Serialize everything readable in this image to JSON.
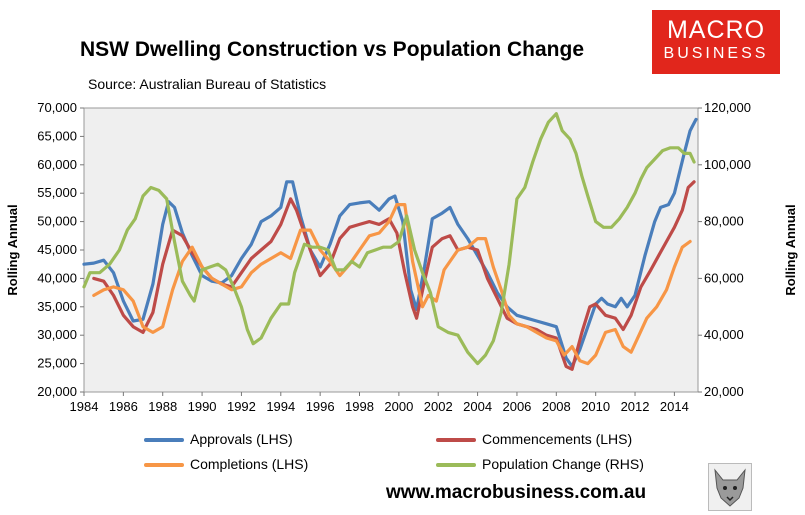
{
  "chart_data": {
    "type": "line",
    "title": "NSW Dwelling Construction vs Population Change",
    "subtitle": "Source: Australian Bureau of Statistics",
    "x_ticks": [
      "1984",
      "1986",
      "1988",
      "1990",
      "1992",
      "1994",
      "1996",
      "1998",
      "2000",
      "2002",
      "2004",
      "2006",
      "2008",
      "2010",
      "2012",
      "2014"
    ],
    "xlim": [
      1984,
      2015.2
    ],
    "left_axis": {
      "label": "Rolling Annual",
      "ylim": [
        20000,
        70000
      ],
      "ticks": [
        "20,000",
        "25,000",
        "30,000",
        "35,000",
        "40,000",
        "45,000",
        "50,000",
        "55,000",
        "60,000",
        "65,000",
        "70,000"
      ]
    },
    "right_axis": {
      "label": "Rolling Annual",
      "ylim": [
        20000,
        120000
      ],
      "ticks": [
        "20,000",
        "40,000",
        "60,000",
        "80,000",
        "100,000",
        "120,000"
      ]
    },
    "series": [
      {
        "name": "Approvals (LHS)",
        "axis": "left",
        "color": "#4a7ebb",
        "points": [
          [
            1984,
            42500
          ],
          [
            1984.5,
            42700
          ],
          [
            1985,
            43200
          ],
          [
            1985.5,
            41000
          ],
          [
            1986,
            36000
          ],
          [
            1986.5,
            32500
          ],
          [
            1987,
            32800
          ],
          [
            1987.5,
            39000
          ],
          [
            1988,
            49500
          ],
          [
            1988.3,
            53500
          ],
          [
            1988.6,
            52500
          ],
          [
            1989,
            48000
          ],
          [
            1989.5,
            44000
          ],
          [
            1990,
            40500
          ],
          [
            1990.5,
            39500
          ],
          [
            1991,
            39200
          ],
          [
            1991.5,
            40500
          ],
          [
            1992,
            43500
          ],
          [
            1992.5,
            46000
          ],
          [
            1993,
            50000
          ],
          [
            1993.5,
            51000
          ],
          [
            1994,
            52500
          ],
          [
            1994.3,
            57000
          ],
          [
            1994.6,
            57000
          ],
          [
            1995,
            51000
          ],
          [
            1995.5,
            45000
          ],
          [
            1996,
            42000
          ],
          [
            1996.5,
            46000
          ],
          [
            1997,
            51000
          ],
          [
            1997.5,
            53000
          ],
          [
            1998,
            53300
          ],
          [
            1998.5,
            53500
          ],
          [
            1999,
            52000
          ],
          [
            1999.5,
            54000
          ],
          [
            1999.8,
            54500
          ],
          [
            2000.2,
            50000
          ],
          [
            2000.6,
            38000
          ],
          [
            2000.9,
            34500
          ],
          [
            2001.3,
            42000
          ],
          [
            2001.7,
            50500
          ],
          [
            2002.2,
            51500
          ],
          [
            2002.6,
            52500
          ],
          [
            2003,
            49500
          ],
          [
            2003.5,
            47000
          ],
          [
            2004,
            44000
          ],
          [
            2004.5,
            41000
          ],
          [
            2005,
            37500
          ],
          [
            2005.5,
            35000
          ],
          [
            2006,
            33500
          ],
          [
            2006.5,
            33000
          ],
          [
            2007,
            32500
          ],
          [
            2007.5,
            32000
          ],
          [
            2008,
            31500
          ],
          [
            2008.5,
            26000
          ],
          [
            2008.8,
            24500
          ],
          [
            2009.2,
            27500
          ],
          [
            2009.6,
            31500
          ],
          [
            2010,
            35500
          ],
          [
            2010.3,
            36500
          ],
          [
            2010.6,
            35500
          ],
          [
            2011,
            35000
          ],
          [
            2011.3,
            36500
          ],
          [
            2011.6,
            35000
          ],
          [
            2012,
            37000
          ],
          [
            2012.5,
            44000
          ],
          [
            2013,
            50000
          ],
          [
            2013.3,
            52500
          ],
          [
            2013.7,
            53000
          ],
          [
            2014,
            55000
          ],
          [
            2014.5,
            62000
          ],
          [
            2014.8,
            66000
          ],
          [
            2015.1,
            68000
          ]
        ]
      },
      {
        "name": "Commencements (LHS)",
        "axis": "left",
        "color": "#be4b48",
        "points": [
          [
            1984.5,
            40000
          ],
          [
            1985,
            39500
          ],
          [
            1985.5,
            37000
          ],
          [
            1986,
            33500
          ],
          [
            1986.5,
            31500
          ],
          [
            1987,
            30500
          ],
          [
            1987.5,
            34000
          ],
          [
            1988,
            42500
          ],
          [
            1988.5,
            48500
          ],
          [
            1989,
            47500
          ],
          [
            1989.5,
            44500
          ],
          [
            1990,
            42000
          ],
          [
            1990.5,
            40000
          ],
          [
            1991,
            39000
          ],
          [
            1991.5,
            38500
          ],
          [
            1992,
            41000
          ],
          [
            1992.5,
            43500
          ],
          [
            1993,
            45000
          ],
          [
            1993.5,
            46500
          ],
          [
            1994,
            49500
          ],
          [
            1994.5,
            54000
          ],
          [
            1994.8,
            52000
          ],
          [
            1995.2,
            48000
          ],
          [
            1995.6,
            44000
          ],
          [
            1996,
            40500
          ],
          [
            1996.5,
            42500
          ],
          [
            1997,
            47000
          ],
          [
            1997.5,
            49000
          ],
          [
            1998,
            49500
          ],
          [
            1998.5,
            50000
          ],
          [
            1999,
            49500
          ],
          [
            1999.5,
            50500
          ],
          [
            1999.9,
            48000
          ],
          [
            2000.3,
            41000
          ],
          [
            2000.7,
            35000
          ],
          [
            2000.9,
            33000
          ],
          [
            2001.3,
            39500
          ],
          [
            2001.7,
            45500
          ],
          [
            2002.2,
            47000
          ],
          [
            2002.6,
            47500
          ],
          [
            2003,
            45000
          ],
          [
            2003.5,
            45500
          ],
          [
            2004,
            45000
          ],
          [
            2004.5,
            40000
          ],
          [
            2005,
            36500
          ],
          [
            2005.5,
            33000
          ],
          [
            2006,
            32000
          ],
          [
            2006.5,
            31500
          ],
          [
            2007,
            31000
          ],
          [
            2007.5,
            30000
          ],
          [
            2008,
            29500
          ],
          [
            2008.5,
            24500
          ],
          [
            2008.8,
            24000
          ],
          [
            2009.3,
            30500
          ],
          [
            2009.7,
            35000
          ],
          [
            2010,
            35500
          ],
          [
            2010.5,
            33500
          ],
          [
            2011,
            33000
          ],
          [
            2011.4,
            31000
          ],
          [
            2011.8,
            33500
          ],
          [
            2012.3,
            38500
          ],
          [
            2012.8,
            41500
          ],
          [
            2013.2,
            44000
          ],
          [
            2013.6,
            46500
          ],
          [
            2014,
            49000
          ],
          [
            2014.4,
            52000
          ],
          [
            2014.7,
            56000
          ],
          [
            2015,
            57000
          ]
        ]
      },
      {
        "name": "Completions (LHS)",
        "axis": "left",
        "color": "#f79646",
        "points": [
          [
            1984.5,
            37000
          ],
          [
            1985,
            38000
          ],
          [
            1985.5,
            38500
          ],
          [
            1986,
            38000
          ],
          [
            1986.5,
            36000
          ],
          [
            1987,
            31500
          ],
          [
            1987.5,
            30500
          ],
          [
            1988,
            31500
          ],
          [
            1988.5,
            38000
          ],
          [
            1989,
            43000
          ],
          [
            1989.5,
            45500
          ],
          [
            1990,
            42000
          ],
          [
            1990.5,
            40000
          ],
          [
            1991,
            39000
          ],
          [
            1991.5,
            38000
          ],
          [
            1992,
            38500
          ],
          [
            1992.5,
            41000
          ],
          [
            1993,
            42500
          ],
          [
            1993.5,
            43500
          ],
          [
            1994,
            44500
          ],
          [
            1994.5,
            43500
          ],
          [
            1995,
            48500
          ],
          [
            1995.5,
            48500
          ],
          [
            1996,
            45000
          ],
          [
            1996.5,
            43000
          ],
          [
            1997,
            40500
          ],
          [
            1997.5,
            42500
          ],
          [
            1998,
            45000
          ],
          [
            1998.5,
            47500
          ],
          [
            1999,
            48000
          ],
          [
            1999.5,
            50000
          ],
          [
            1999.9,
            53000
          ],
          [
            2000.3,
            53000
          ],
          [
            2000.7,
            43000
          ],
          [
            2001.2,
            35000
          ],
          [
            2001.5,
            37000
          ],
          [
            2001.9,
            36000
          ],
          [
            2002.3,
            41500
          ],
          [
            2002.7,
            43500
          ],
          [
            2003,
            45000
          ],
          [
            2003.5,
            45500
          ],
          [
            2004,
            47000
          ],
          [
            2004.4,
            47000
          ],
          [
            2004.8,
            42000
          ],
          [
            2005.2,
            38000
          ],
          [
            2005.6,
            33500
          ],
          [
            2006,
            32000
          ],
          [
            2006.5,
            31500
          ],
          [
            2007,
            30500
          ],
          [
            2007.5,
            29500
          ],
          [
            2008,
            29000
          ],
          [
            2008.4,
            26500
          ],
          [
            2008.8,
            28000
          ],
          [
            2009.2,
            25500
          ],
          [
            2009.6,
            25000
          ],
          [
            2010,
            26500
          ],
          [
            2010.5,
            30500
          ],
          [
            2011,
            31000
          ],
          [
            2011.4,
            28000
          ],
          [
            2011.8,
            27000
          ],
          [
            2012.2,
            30000
          ],
          [
            2012.6,
            33000
          ],
          [
            2013.1,
            35000
          ],
          [
            2013.6,
            38000
          ],
          [
            2014,
            42000
          ],
          [
            2014.4,
            45500
          ],
          [
            2014.8,
            46500
          ]
        ]
      },
      {
        "name": "Population Change (RHS)",
        "axis": "right",
        "color": "#9bbb59",
        "points": [
          [
            1984,
            57000
          ],
          [
            1984.3,
            62000
          ],
          [
            1984.8,
            62000
          ],
          [
            1985.3,
            65000
          ],
          [
            1985.8,
            70000
          ],
          [
            1986.2,
            77000
          ],
          [
            1986.6,
            81000
          ],
          [
            1987,
            89000
          ],
          [
            1987.4,
            92000
          ],
          [
            1987.8,
            91000
          ],
          [
            1988.2,
            88000
          ],
          [
            1988.6,
            73000
          ],
          [
            1989,
            59000
          ],
          [
            1989.4,
            54000
          ],
          [
            1989.6,
            52000
          ],
          [
            1990,
            63000
          ],
          [
            1990.4,
            64000
          ],
          [
            1990.8,
            65000
          ],
          [
            1991.2,
            63000
          ],
          [
            1991.6,
            57000
          ],
          [
            1992,
            50000
          ],
          [
            1992.3,
            42000
          ],
          [
            1992.6,
            37000
          ],
          [
            1993,
            39000
          ],
          [
            1993.5,
            46000
          ],
          [
            1994,
            51000
          ],
          [
            1994.4,
            51000
          ],
          [
            1994.7,
            62000
          ],
          [
            1995.2,
            72000
          ],
          [
            1995.6,
            71000
          ],
          [
            1996,
            71000
          ],
          [
            1996.4,
            70000
          ],
          [
            1996.8,
            63000
          ],
          [
            1997.2,
            63000
          ],
          [
            1997.6,
            66000
          ],
          [
            1998,
            64000
          ],
          [
            1998.4,
            69000
          ],
          [
            1998.8,
            70000
          ],
          [
            1999.2,
            71000
          ],
          [
            1999.6,
            71000
          ],
          [
            2000,
            73000
          ],
          [
            2000.4,
            82000
          ],
          [
            2000.8,
            70000
          ],
          [
            2001.2,
            62000
          ],
          [
            2001.6,
            55000
          ],
          [
            2002,
            43000
          ],
          [
            2002.5,
            41000
          ],
          [
            2003,
            40000
          ],
          [
            2003.5,
            34000
          ],
          [
            2004,
            30000
          ],
          [
            2004.4,
            33000
          ],
          [
            2004.8,
            38000
          ],
          [
            2005.2,
            48000
          ],
          [
            2005.6,
            65000
          ],
          [
            2006,
            88000
          ],
          [
            2006.4,
            92000
          ],
          [
            2006.8,
            101000
          ],
          [
            2007.2,
            109000
          ],
          [
            2007.6,
            115000
          ],
          [
            2008,
            118000
          ],
          [
            2008.3,
            112000
          ],
          [
            2008.7,
            109000
          ],
          [
            2009,
            104000
          ],
          [
            2009.3,
            96000
          ],
          [
            2009.6,
            89000
          ],
          [
            2010,
            80000
          ],
          [
            2010.4,
            78000
          ],
          [
            2010.8,
            78000
          ],
          [
            2011.2,
            81000
          ],
          [
            2011.6,
            85000
          ],
          [
            2012,
            90000
          ],
          [
            2012.3,
            95000
          ],
          [
            2012.6,
            99000
          ],
          [
            2013,
            102000
          ],
          [
            2013.4,
            105000
          ],
          [
            2013.8,
            106000
          ],
          [
            2014.2,
            106000
          ],
          [
            2014.5,
            104000
          ],
          [
            2014.8,
            104000
          ],
          [
            2015,
            101000
          ]
        ]
      }
    ]
  },
  "logo": {
    "line1": "MACRO",
    "line2": "BUSINESS"
  },
  "footer": {
    "url": "www.macrobusiness.com.au"
  }
}
